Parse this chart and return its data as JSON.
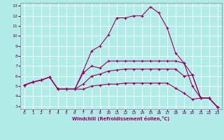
{
  "xlabel": "Windchill (Refroidissement éolien,°C)",
  "bg_color": "#b2ece8",
  "line_color": "#990066",
  "grid_color": "#ffffff",
  "xlim": [
    -0.5,
    23.5
  ],
  "ylim": [
    2.7,
    13.3
  ],
  "xticks": [
    0,
    1,
    2,
    3,
    4,
    5,
    6,
    7,
    8,
    9,
    10,
    11,
    12,
    13,
    14,
    15,
    16,
    17,
    18,
    19,
    20,
    21,
    22,
    23
  ],
  "yticks": [
    3,
    4,
    5,
    6,
    7,
    8,
    9,
    10,
    11,
    12,
    13
  ],
  "line1_x": [
    0,
    1,
    2,
    3,
    4,
    5,
    6,
    7,
    8,
    9,
    10,
    11,
    12,
    13,
    14,
    15,
    16,
    17,
    18,
    19,
    20,
    21,
    22,
    23
  ],
  "line1_y": [
    5.1,
    5.4,
    5.6,
    5.9,
    4.7,
    4.7,
    4.7,
    4.7,
    5.0,
    5.1,
    5.2,
    5.2,
    5.3,
    5.3,
    5.3,
    5.3,
    5.3,
    5.3,
    4.8,
    4.3,
    3.7,
    3.8,
    3.8,
    2.9
  ],
  "line2_x": [
    0,
    1,
    2,
    3,
    4,
    5,
    6,
    7,
    8,
    9,
    10,
    11,
    12,
    13,
    14,
    15,
    16,
    17,
    18,
    19,
    20,
    21,
    22,
    23
  ],
  "line2_y": [
    5.1,
    5.4,
    5.6,
    5.9,
    4.7,
    4.7,
    4.7,
    5.2,
    6.0,
    6.2,
    6.5,
    6.6,
    6.7,
    6.7,
    6.7,
    6.7,
    6.7,
    6.7,
    6.7,
    6.0,
    6.1,
    3.8,
    3.8,
    2.9
  ],
  "line3_x": [
    0,
    1,
    2,
    3,
    4,
    5,
    6,
    7,
    8,
    9,
    10,
    11,
    12,
    13,
    14,
    15,
    16,
    17,
    18,
    19,
    20,
    21,
    22,
    23
  ],
  "line3_y": [
    5.1,
    5.4,
    5.6,
    5.9,
    4.7,
    4.7,
    4.7,
    6.3,
    7.0,
    6.8,
    7.5,
    7.5,
    7.5,
    7.5,
    7.5,
    7.5,
    7.5,
    7.5,
    7.5,
    7.3,
    6.1,
    3.8,
    3.8,
    2.9
  ],
  "line4_x": [
    0,
    1,
    2,
    3,
    4,
    5,
    6,
    7,
    8,
    9,
    10,
    11,
    12,
    13,
    14,
    15,
    16,
    17,
    18,
    19,
    20,
    21,
    22,
    23
  ],
  "line4_y": [
    5.1,
    5.4,
    5.6,
    5.9,
    4.7,
    4.7,
    4.7,
    6.5,
    8.5,
    9.0,
    10.1,
    11.8,
    11.8,
    12.0,
    12.0,
    12.9,
    12.3,
    10.8,
    8.3,
    7.3,
    5.0,
    3.8,
    3.8,
    2.9
  ]
}
